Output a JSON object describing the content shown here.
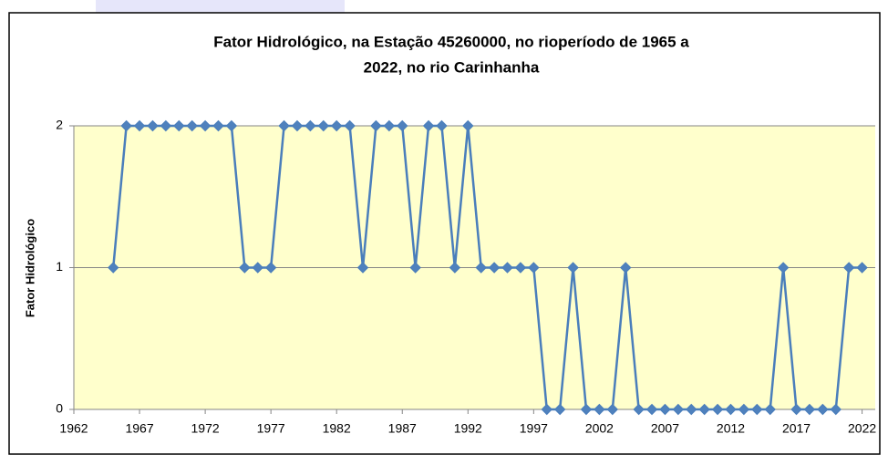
{
  "chart_data": {
    "type": "line",
    "title": [
      "Fator Hidrológico,  na Estação 45260000, no rioperíodo de 1965 a",
      "2022, no rio Carinhanha"
    ],
    "y_label": "Fator Hidrológico",
    "x": [
      1965,
      1966,
      1967,
      1968,
      1969,
      1970,
      1971,
      1972,
      1973,
      1974,
      1975,
      1976,
      1977,
      1978,
      1979,
      1980,
      1981,
      1982,
      1983,
      1984,
      1985,
      1986,
      1987,
      1988,
      1989,
      1990,
      1991,
      1992,
      1993,
      1994,
      1995,
      1996,
      1997,
      1998,
      1999,
      2000,
      2001,
      2002,
      2003,
      2004,
      2005,
      2006,
      2007,
      2008,
      2009,
      2010,
      2011,
      2012,
      2013,
      2014,
      2015,
      2016,
      2017,
      2018,
      2019,
      2020,
      2021,
      2022
    ],
    "series": [
      {
        "name": "Fator Hidrológico",
        "color": "#4a7ebb",
        "values": [
          1,
          2,
          2,
          2,
          2,
          2,
          2,
          2,
          2,
          2,
          1,
          1,
          1,
          2,
          2,
          2,
          2,
          2,
          2,
          1,
          2,
          2,
          2,
          1,
          2,
          2,
          1,
          2,
          1,
          1,
          1,
          1,
          1,
          0,
          0,
          1,
          0,
          0,
          0,
          1,
          0,
          0,
          0,
          0,
          0,
          0,
          0,
          0,
          0,
          0,
          0,
          1,
          0,
          0,
          0,
          0,
          1,
          1
        ]
      }
    ],
    "xlim": [
      1962,
      2023
    ],
    "xticks": [
      1962,
      1967,
      1972,
      1977,
      1982,
      1987,
      1992,
      1997,
      2002,
      2007,
      2012,
      2017,
      2022
    ],
    "ylim": [
      0,
      2
    ],
    "yticks": [
      0,
      1,
      2
    ],
    "grid": true,
    "plot_background": "#ffffcc"
  }
}
